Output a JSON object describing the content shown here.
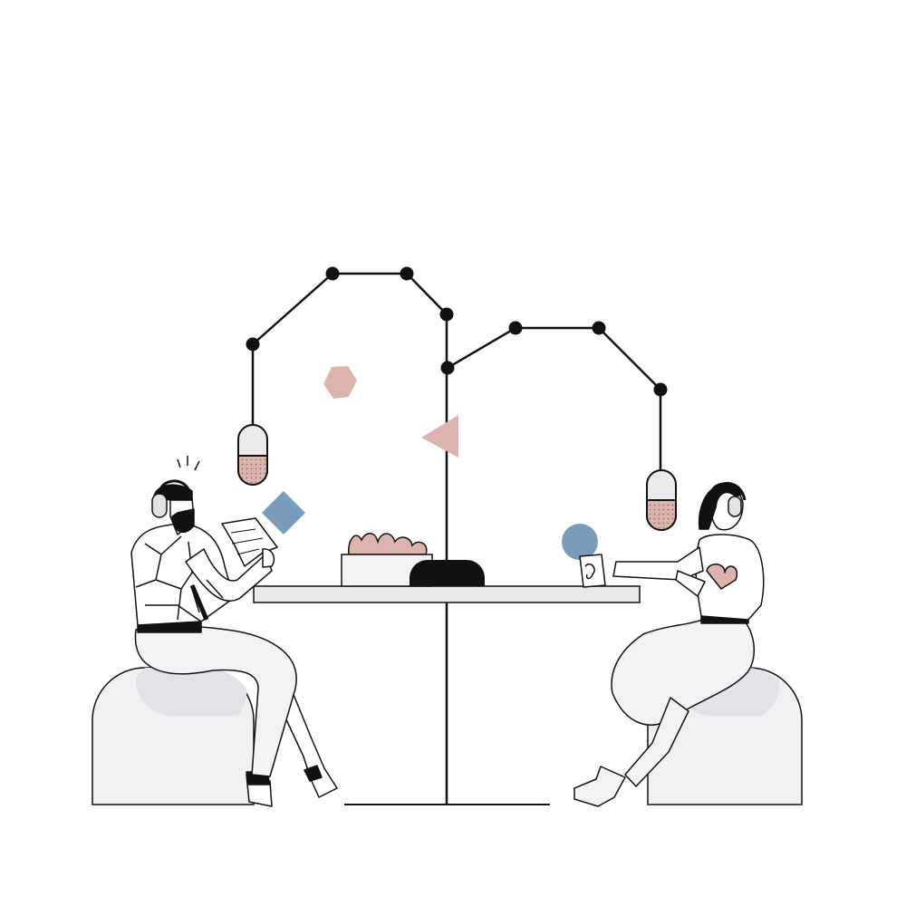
{
  "scene": {
    "subject": "podcast-recording",
    "background": "#ffffff"
  },
  "colors": {
    "ink": "#111111",
    "seat": "#f1f0f3",
    "seat_shadow": "#e3e2e6",
    "table_top": "#e9e9ec",
    "pink": "#ddb3ad",
    "blue": "#7b9bbb",
    "pants": "#f3f2f5",
    "skin": "#ffffff"
  },
  "icons": {
    "left_microphone": "microphone-icon",
    "right_microphone": "microphone-icon",
    "hexagon": "hexagon-shape",
    "triangle": "triangle-shape",
    "diamond": "diamond-shape",
    "circle": "circle-shape"
  }
}
